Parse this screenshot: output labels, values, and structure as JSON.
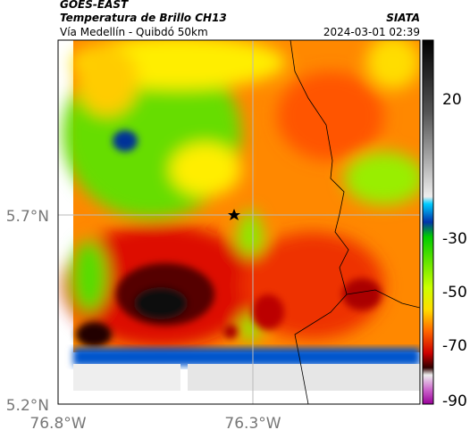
{
  "header": {
    "title": "GOES-EAST",
    "subtitle": "Temperatura de Brillo CH13",
    "source": "SIATA",
    "location": "Vía Medellín - Quibdó 50km",
    "timestamp": "2024-03-01 02:39"
  },
  "map": {
    "lat_ticks": [
      "5.7°N",
      "5.2°N"
    ],
    "lon_ticks": [
      "76.8°W",
      "76.3°W"
    ]
  },
  "colorbar": {
    "ticks": [
      "20",
      "-30",
      "-50",
      "-70",
      "-90"
    ]
  }
}
